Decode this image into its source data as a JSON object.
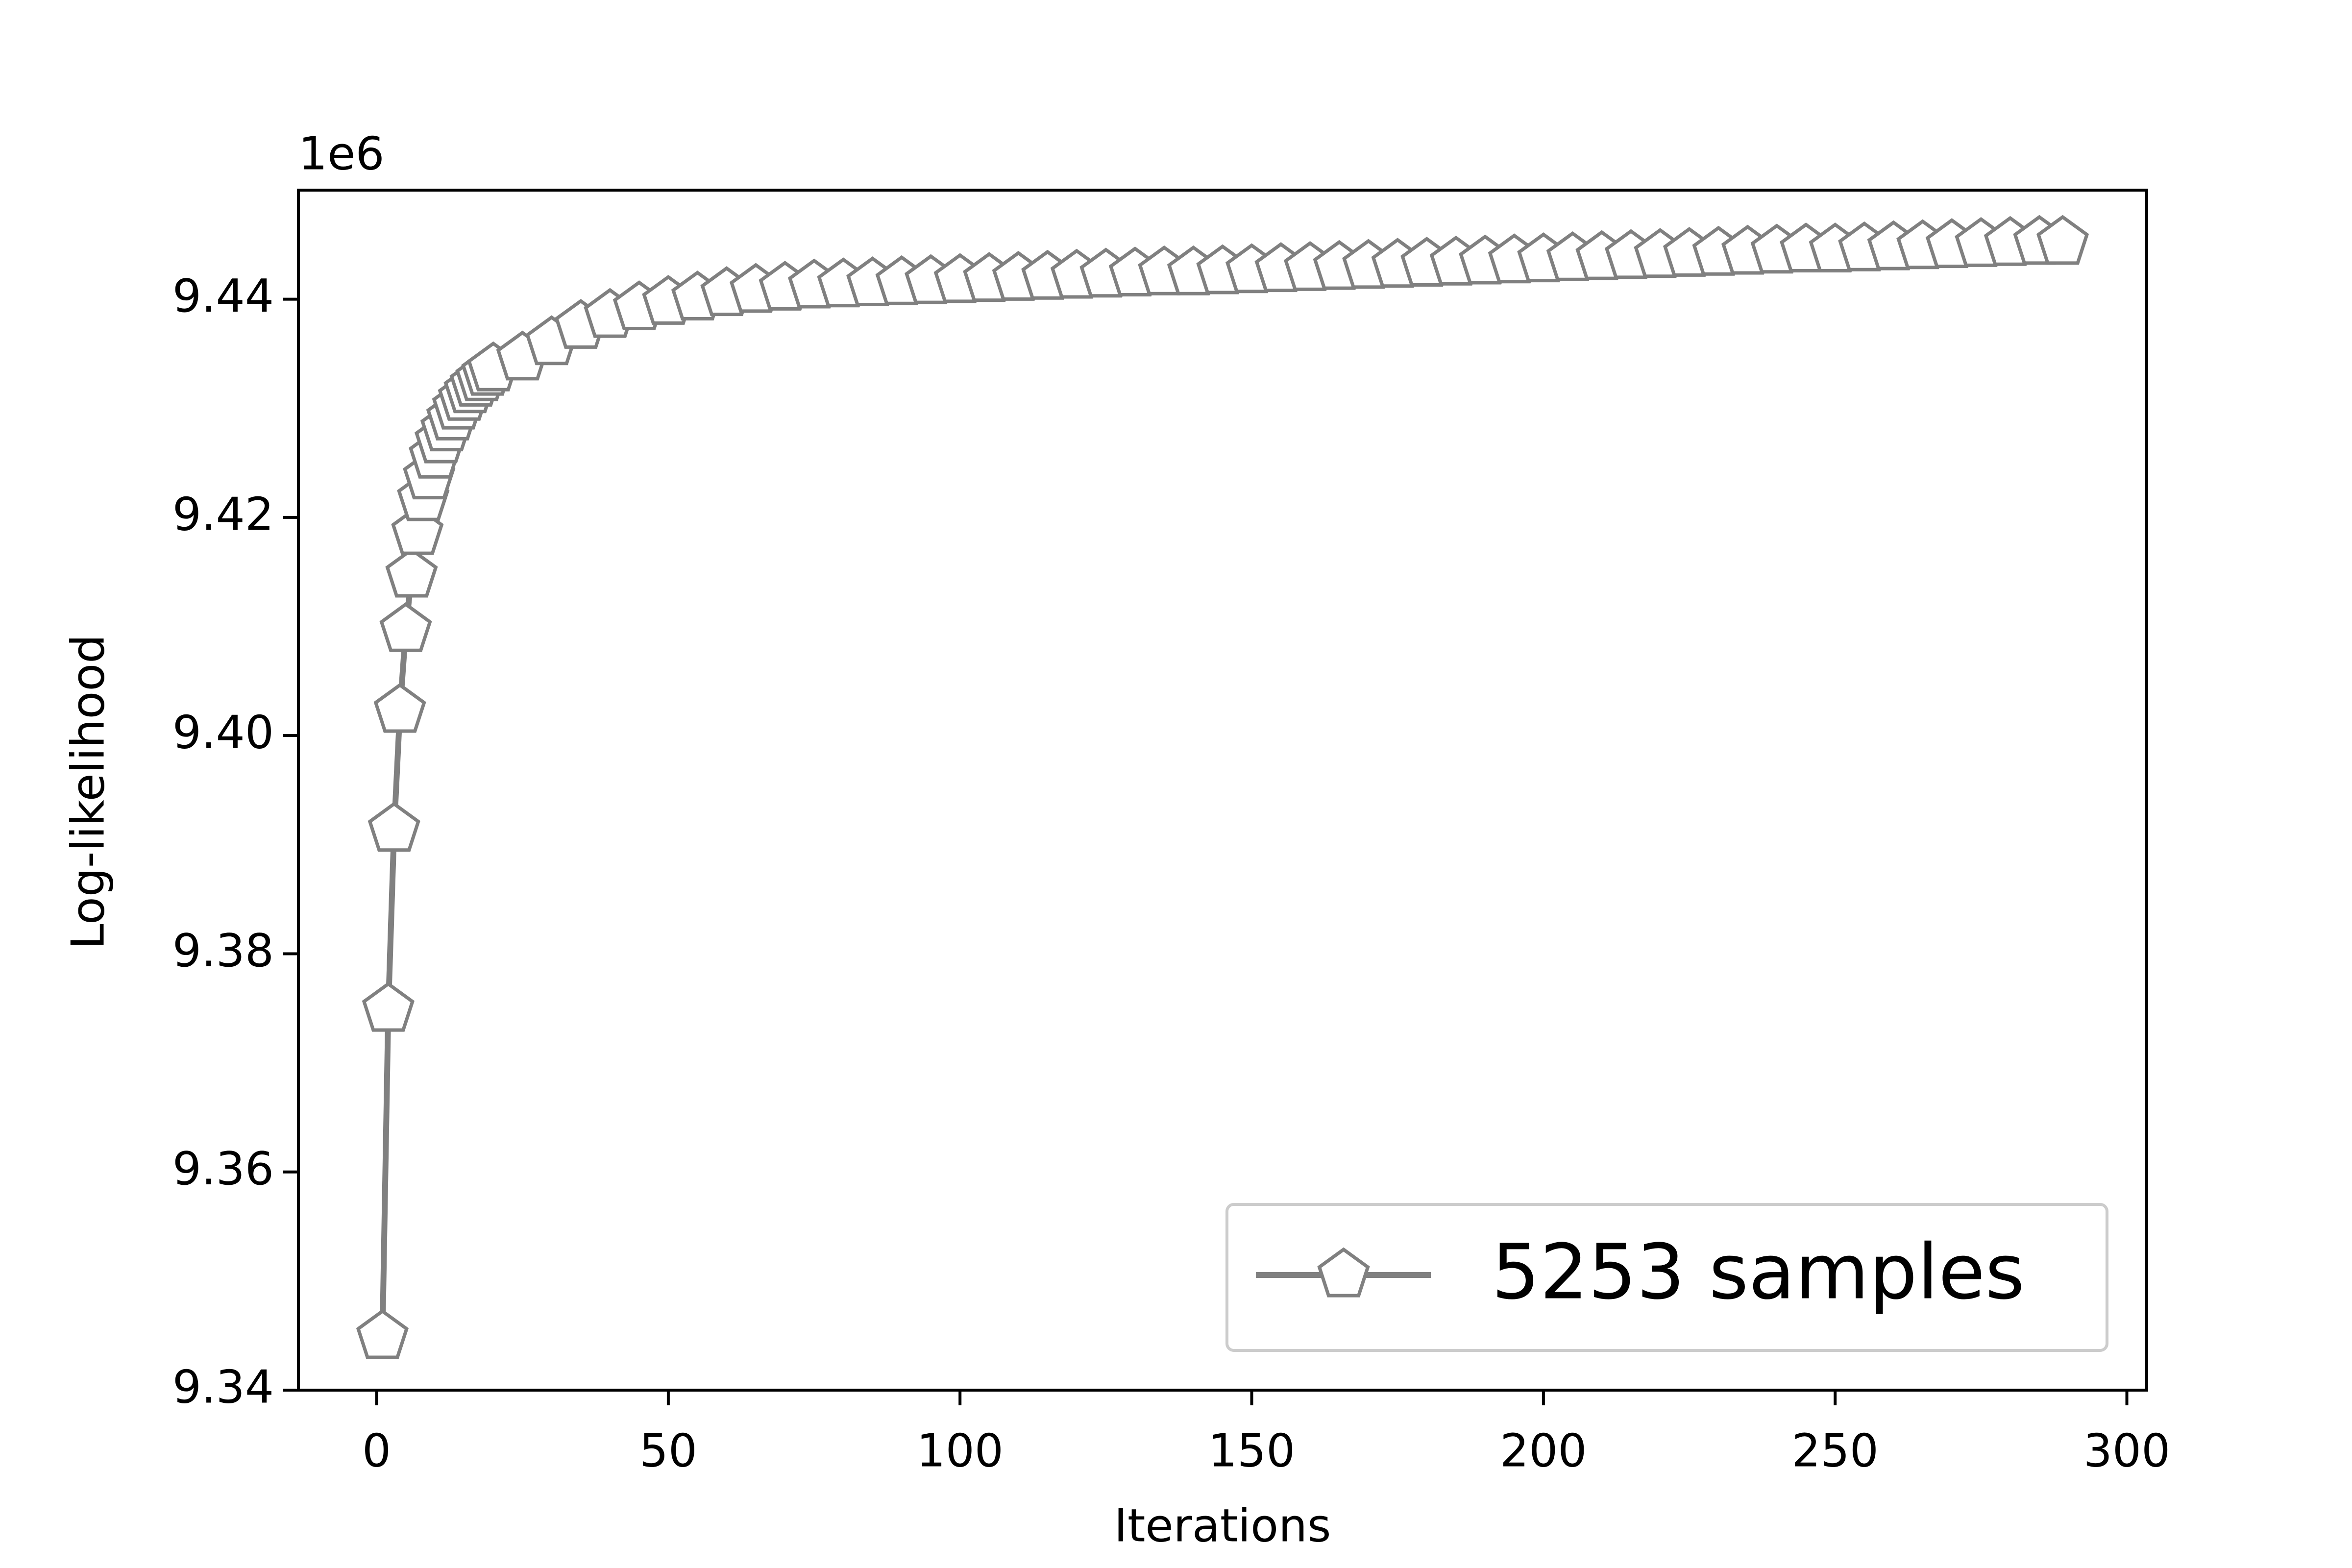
{
  "chart_data": {
    "type": "line",
    "xlabel": "Iterations",
    "ylabel": "Log-likelihood",
    "offset_label": "1e6",
    "x": [
      1,
      2,
      3,
      4,
      5,
      6,
      7,
      8,
      9,
      10,
      11,
      12,
      13,
      14,
      15,
      16,
      17,
      18,
      19,
      20,
      25,
      30,
      35,
      40,
      45,
      50,
      55,
      60,
      65,
      70,
      75,
      80,
      85,
      90,
      95,
      100,
      105,
      110,
      115,
      120,
      125,
      130,
      135,
      140,
      145,
      150,
      155,
      160,
      165,
      170,
      175,
      180,
      185,
      190,
      195,
      200,
      205,
      210,
      215,
      220,
      225,
      230,
      235,
      240,
      245,
      250,
      255,
      260,
      265,
      270,
      275,
      280,
      285,
      289
    ],
    "series": [
      {
        "name": "5253 samples",
        "color": "#808080",
        "marker": "pentagon",
        "values": [
          9.3449,
          9.3749,
          9.3914,
          9.4023,
          9.4097,
          9.4147,
          9.4186,
          9.4217,
          9.4237,
          9.4256,
          9.427,
          9.4281,
          9.4291,
          9.4301,
          9.4309,
          9.4316,
          9.4322,
          9.4327,
          9.4332,
          9.4336,
          9.4346,
          9.436,
          9.4375,
          9.4385,
          9.4392,
          9.4397,
          9.4401,
          9.4405,
          9.4408,
          9.441,
          9.4412,
          9.4413,
          9.4414,
          9.4415,
          9.4416,
          9.4417,
          9.4418,
          9.4419,
          9.442,
          9.4421,
          9.4422,
          9.4423,
          9.4424,
          9.4424,
          9.4425,
          9.4426,
          9.4427,
          9.4428,
          9.4429,
          9.443,
          9.4431,
          9.4432,
          9.4433,
          9.4434,
          9.4435,
          9.4436,
          9.4437,
          9.4438,
          9.4439,
          9.444,
          9.4441,
          9.4442,
          9.4443,
          9.4444,
          9.4445,
          9.4445,
          9.4446,
          9.4447,
          9.4448,
          9.4449,
          9.445,
          9.4451,
          9.4452,
          9.4452
        ]
      }
    ],
    "xlim": [
      -13.4,
      303.4
    ],
    "ylim": [
      9.34,
      9.45
    ],
    "xticks": [
      0,
      50,
      100,
      150,
      200,
      250,
      300
    ],
    "yticks": [
      9.34,
      9.36,
      9.38,
      {
        "value": 9.4,
        "label": "9.40"
      },
      9.42,
      9.44
    ],
    "grid": false,
    "legend": "lower right"
  }
}
